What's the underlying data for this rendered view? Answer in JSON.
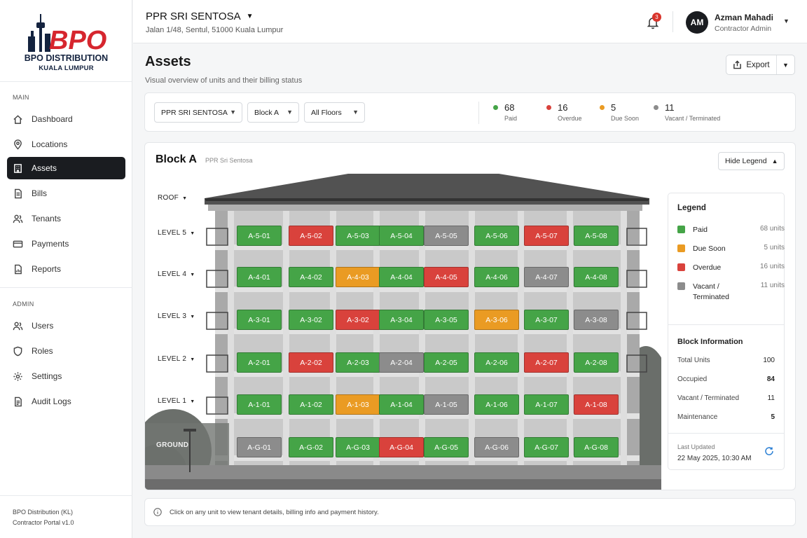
{
  "brand": {
    "logo_text": "BPO",
    "name": "BPO DISTRIBUTION",
    "city": "KUALA LUMPUR"
  },
  "sidebar": {
    "main_label": "MAIN",
    "admin_label": "ADMIN",
    "main_items": [
      {
        "label": "Dashboard",
        "icon": "home-icon"
      },
      {
        "label": "Locations",
        "icon": "map-pin-icon"
      },
      {
        "label": "Assets",
        "icon": "building-icon",
        "active": true
      },
      {
        "label": "Bills",
        "icon": "file-icon"
      },
      {
        "label": "Tenants",
        "icon": "users-icon"
      },
      {
        "label": "Payments",
        "icon": "card-icon"
      },
      {
        "label": "Reports",
        "icon": "report-icon"
      }
    ],
    "admin_items": [
      {
        "label": "Users",
        "icon": "users-icon"
      },
      {
        "label": "Roles",
        "icon": "shield-icon"
      },
      {
        "label": "Settings",
        "icon": "gear-icon"
      },
      {
        "label": "Audit Logs",
        "icon": "log-icon"
      }
    ],
    "footer_company": "BPO Distribution (KL)",
    "footer_version": "Contractor Portal v1.0"
  },
  "header": {
    "property": "PPR SRI SENTOSA",
    "address": "Jalan 1/48, Sentul, 51000 Kuala Lumpur",
    "notifications": "3",
    "user_initials": "AM",
    "user_name": "Azman Mahadi",
    "user_role": "Contractor Admin"
  },
  "page": {
    "title": "Assets",
    "subtitle": "Visual overview of units and their billing status",
    "export_label": "Export"
  },
  "filters": {
    "property": "PPR SRI SENTOSA",
    "block": "Block A",
    "floor": "All Floors"
  },
  "stats": [
    {
      "value": "68",
      "label": "Paid",
      "color": "#45a447"
    },
    {
      "value": "16",
      "label": "Overdue",
      "color": "#d9423c"
    },
    {
      "value": "5",
      "label": "Due Soon",
      "color": "#ea9b23"
    },
    {
      "value": "11",
      "label": "Vacant / Terminated",
      "color": "#8c8c8c"
    }
  ],
  "block": {
    "title": "Block A",
    "subtitle": "PPR Sri Sentosa",
    "hide_legend_label": "Hide Legend",
    "roof_label": "ROOF",
    "floors": [
      {
        "label": "LEVEL 5",
        "units": [
          [
            "A-5-01",
            "paid"
          ],
          [
            "A-5-02",
            "overdue"
          ],
          [
            "A-5-03",
            "paid"
          ],
          [
            "A-5-04",
            "paid"
          ],
          [
            "A-5-05",
            "vacant"
          ],
          [
            "A-5-06",
            "paid"
          ],
          [
            "A-5-07",
            "overdue"
          ],
          [
            "A-5-08",
            "paid"
          ]
        ]
      },
      {
        "label": "LEVEL 4",
        "units": [
          [
            "A-4-01",
            "paid"
          ],
          [
            "A-4-02",
            "paid"
          ],
          [
            "A-4-03",
            "due"
          ],
          [
            "A-4-04",
            "paid"
          ],
          [
            "A-4-05",
            "overdue"
          ],
          [
            "A-4-06",
            "paid"
          ],
          [
            "A-4-07",
            "vacant"
          ],
          [
            "A-4-08",
            "paid"
          ]
        ]
      },
      {
        "label": "LEVEL 3",
        "units": [
          [
            "A-3-01",
            "paid"
          ],
          [
            "A-3-02",
            "paid"
          ],
          [
            "A-3-02",
            "overdue"
          ],
          [
            "A-3-04",
            "paid"
          ],
          [
            "A-3-05",
            "paid"
          ],
          [
            "A-3-06",
            "due"
          ],
          [
            "A-3-07",
            "paid"
          ],
          [
            "A-3-08",
            "vacant"
          ]
        ]
      },
      {
        "label": "LEVEL 2",
        "units": [
          [
            "A-2-01",
            "paid"
          ],
          [
            "A-2-02",
            "overdue"
          ],
          [
            "A-2-03",
            "paid"
          ],
          [
            "A-2-04",
            "vacant"
          ],
          [
            "A-2-05",
            "paid"
          ],
          [
            "A-2-06",
            "paid"
          ],
          [
            "A-2-07",
            "overdue"
          ],
          [
            "A-2-08",
            "paid"
          ]
        ]
      },
      {
        "label": "LEVEL 1",
        "units": [
          [
            "A-1-01",
            "paid"
          ],
          [
            "A-1-02",
            "paid"
          ],
          [
            "A-1-03",
            "due"
          ],
          [
            "A-1-04",
            "paid"
          ],
          [
            "A-1-05",
            "vacant"
          ],
          [
            "A-1-06",
            "paid"
          ],
          [
            "A-1-07",
            "paid"
          ],
          [
            "A-1-08",
            "overdue"
          ]
        ]
      },
      {
        "label": "GROUND",
        "units": [
          [
            "A-G-01",
            "vacant"
          ],
          [
            "A-G-02",
            "paid"
          ],
          [
            "A-G-03",
            "paid"
          ],
          [
            "A-G-04",
            "overdue"
          ],
          [
            "A-G-05",
            "paid"
          ],
          [
            "A-G-06",
            "vacant"
          ],
          [
            "A-G-07",
            "paid"
          ],
          [
            "A-G-08",
            "paid"
          ]
        ]
      }
    ]
  },
  "legend": {
    "title": "Legend",
    "items": [
      {
        "label": "Paid",
        "count": "68 units",
        "color": "#45a447"
      },
      {
        "label": "Due Soon",
        "count": "5 units",
        "color": "#ea9b23"
      },
      {
        "label": "Overdue",
        "count": "16 units",
        "color": "#d9423c"
      },
      {
        "label": "Vacant / Terminated",
        "count": "11 units",
        "color": "#8c8c8c"
      }
    ],
    "info_title": "Block Information",
    "info": [
      {
        "label": "Total Units",
        "value": "100"
      },
      {
        "label": "Occupied",
        "value": "84"
      },
      {
        "label": "Vacant / Terminated",
        "value": "11"
      },
      {
        "label": "Maintenance",
        "value": "5"
      }
    ],
    "last_updated_label": "Last Updated",
    "last_updated_value": "22 May 2025, 10:30 AM"
  },
  "info_text": "Click on any unit to view tenant details, billing info and payment history."
}
